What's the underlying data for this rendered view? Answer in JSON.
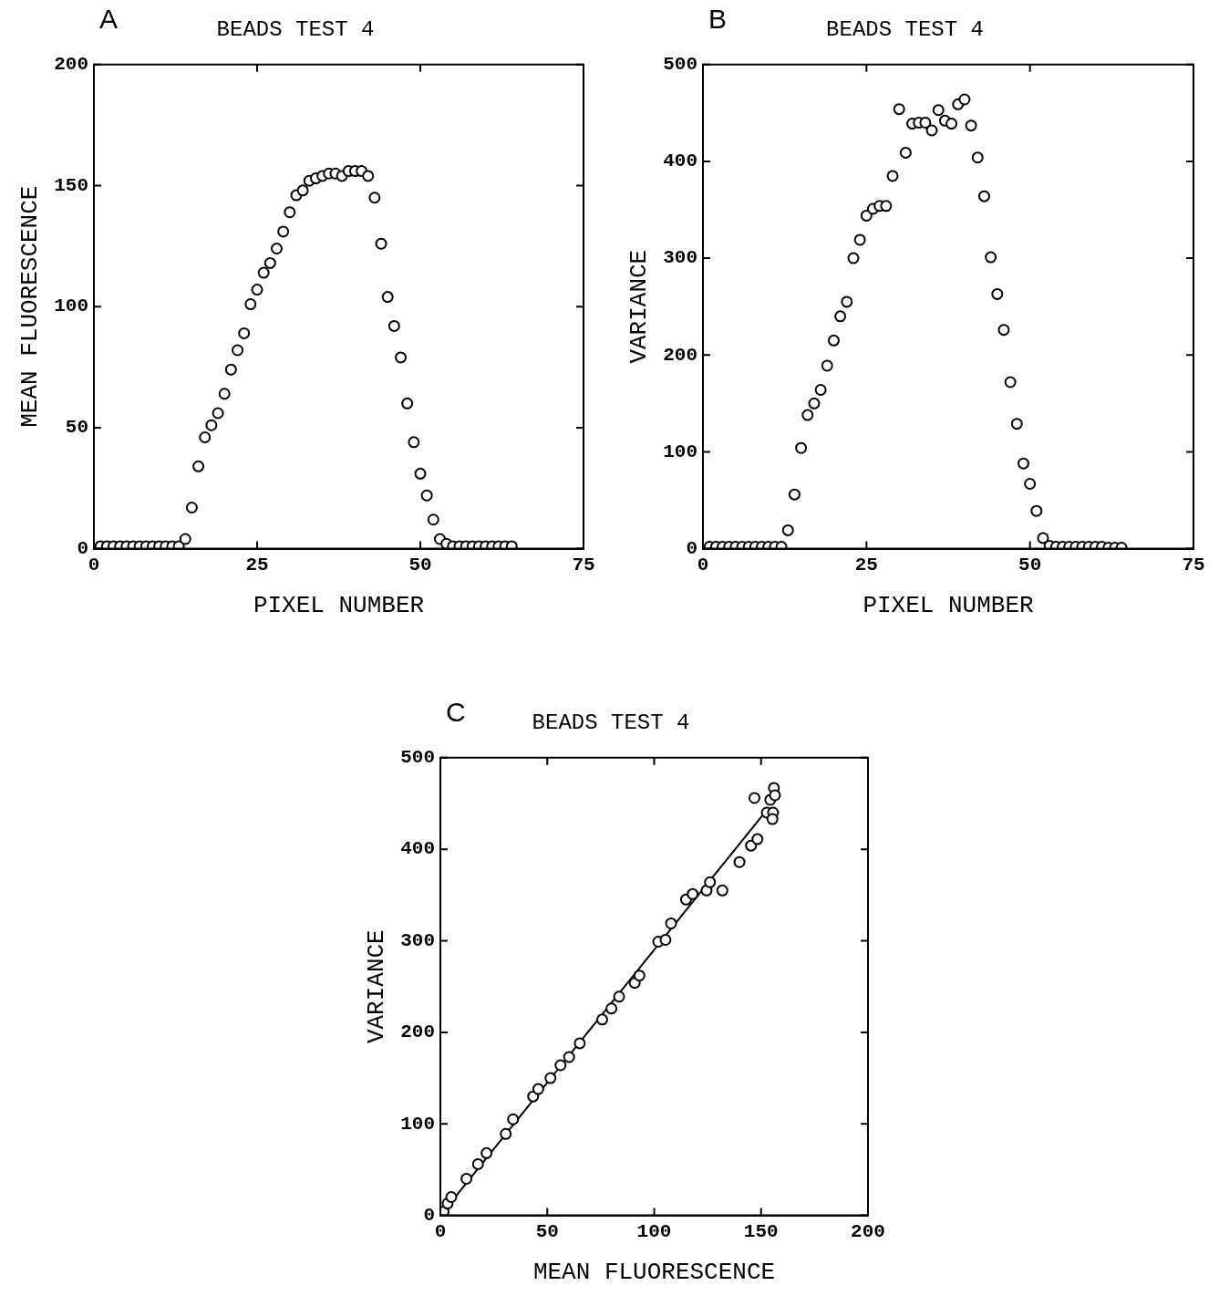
{
  "chart_data": [
    {
      "type": "scatter",
      "title": "BEADS TEST 4",
      "xlabel": "PIXEL NUMBER",
      "ylabel": "MEAN FLUORESCENCE",
      "annotations": [
        "A"
      ],
      "marker": "circle",
      "color": "#000000",
      "x": [
        1,
        2,
        3,
        4,
        5,
        6,
        7,
        8,
        9,
        10,
        11,
        12,
        13,
        14,
        15,
        16,
        17,
        18,
        19,
        20,
        21,
        22,
        23,
        24,
        25,
        26,
        27,
        28,
        29,
        30,
        31,
        32,
        33,
        34,
        35,
        36,
        37,
        38,
        39,
        40,
        41,
        42,
        43,
        44,
        45,
        46,
        47,
        48,
        49,
        50,
        51,
        52,
        53,
        54,
        55,
        56,
        57,
        58,
        59,
        60,
        61,
        62,
        63,
        64
      ],
      "values": [
        1,
        1,
        1,
        1,
        1,
        1,
        1,
        1,
        1,
        1,
        1,
        1,
        1,
        4,
        17,
        34,
        46,
        51,
        56,
        64,
        74,
        82,
        89,
        101,
        107,
        114,
        118,
        124,
        131,
        139,
        146,
        148,
        152,
        153,
        154,
        155,
        155,
        154,
        156,
        156,
        156,
        154,
        145,
        126,
        104,
        92,
        79,
        60,
        44,
        31,
        22,
        12,
        4,
        2,
        1,
        1,
        1,
        1,
        1,
        1,
        1,
        1,
        1,
        1
      ],
      "xlim": [
        0,
        75
      ],
      "xticks": [
        0,
        25,
        50,
        75
      ],
      "ylim": [
        0,
        200
      ],
      "yticks": [
        0,
        50,
        100,
        150,
        200
      ]
    },
    {
      "type": "scatter",
      "title": "BEADS TEST 4",
      "xlabel": "PIXEL NUMBER",
      "ylabel": "VARIANCE",
      "annotations": [
        "B"
      ],
      "marker": "circle",
      "color": "#000000",
      "x": [
        1,
        2,
        3,
        4,
        5,
        6,
        7,
        8,
        9,
        10,
        11,
        12,
        13,
        14,
        15,
        16,
        17,
        18,
        19,
        20,
        21,
        22,
        23,
        24,
        25,
        26,
        27,
        28,
        29,
        30,
        31,
        32,
        33,
        34,
        35,
        36,
        37,
        38,
        39,
        40,
        41,
        42,
        43,
        44,
        45,
        46,
        47,
        48,
        49,
        50,
        51,
        52,
        53,
        54,
        55,
        56,
        57,
        58,
        59,
        60,
        61,
        62,
        63,
        64
      ],
      "values": [
        2,
        2,
        2,
        2,
        2,
        2,
        2,
        2,
        2,
        2,
        2,
        2,
        19,
        56,
        104,
        138,
        150,
        164,
        189,
        215,
        240,
        255,
        300,
        319,
        344,
        351,
        354,
        354,
        385,
        454,
        409,
        439,
        440,
        440,
        432,
        453,
        442,
        439,
        459,
        464,
        437,
        404,
        364,
        301,
        263,
        226,
        172,
        129,
        88,
        67,
        39,
        11,
        3,
        2,
        2,
        2,
        2,
        2,
        2,
        2,
        2,
        1,
        1,
        1
      ],
      "xlim": [
        0,
        75
      ],
      "xticks": [
        0,
        25,
        50,
        75
      ],
      "ylim": [
        0,
        500
      ],
      "yticks": [
        0,
        100,
        200,
        300,
        400,
        500
      ]
    },
    {
      "type": "scatter",
      "title": "BEADS TEST 4",
      "xlabel": "MEAN FLUORESCENCE",
      "ylabel": "VARIANCE",
      "annotations": [
        "C"
      ],
      "series": [
        {
          "marker": "circle",
          "color": "#000000",
          "x": [
            1.5,
            3.4,
            5.1,
            12.2,
            17.6,
            21.6,
            30.6,
            34,
            43.4,
            45.8,
            51.5,
            56.2,
            60.2,
            65.2,
            75.7,
            80,
            83.6,
            90.9,
            93.1,
            101.9,
            105.3,
            107.9,
            114.9,
            118,
            124.5,
            126.1,
            131.9,
            139.9,
            145.3,
            148.3,
            146.9,
            154.3,
            156,
            156.5,
            152.7,
            155.6,
            155.3
          ],
          "values": [
            4,
            13,
            20,
            40,
            56,
            68,
            89,
            105,
            130,
            138,
            150,
            164,
            173,
            188,
            214,
            226,
            239,
            254,
            262,
            299,
            301,
            319,
            345,
            351,
            355,
            364,
            355,
            386,
            404,
            411,
            456,
            454,
            467,
            459,
            440,
            440,
            433
          ]
        },
        {
          "type": "line",
          "marker": "none",
          "color": "#000000",
          "x": [
            0,
            152
          ],
          "values": [
            0,
            441
          ]
        }
      ],
      "xlim": [
        0,
        200
      ],
      "xticks": [
        0,
        50,
        100,
        150,
        200
      ],
      "ylim": [
        0,
        500
      ],
      "yticks": [
        0,
        100,
        200,
        300,
        400,
        500
      ]
    }
  ]
}
